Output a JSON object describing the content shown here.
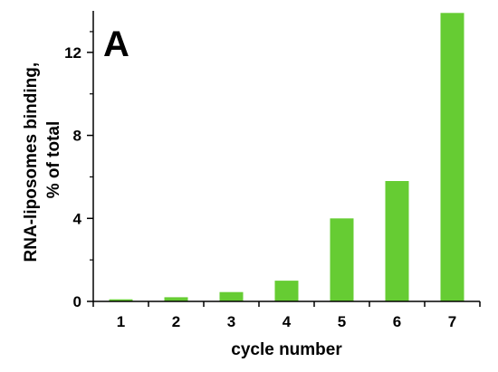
{
  "panel_label": "A",
  "colors": {
    "bar": "#66CC33",
    "axis": "#000000"
  },
  "chart_data": {
    "type": "bar",
    "title": "",
    "xlabel": "cycle number",
    "ylabel_line1": "RNA-liposomes binding,",
    "ylabel_line2": "% of total",
    "categories": [
      "1",
      "2",
      "3",
      "4",
      "5",
      "6",
      "7"
    ],
    "values": [
      0.1,
      0.2,
      0.45,
      1.0,
      4.0,
      5.8,
      13.9
    ],
    "ylim": [
      0,
      14
    ],
    "yticks": [
      0,
      4,
      8,
      12
    ],
    "ytick_labels": [
      "0",
      "4",
      "8",
      "12"
    ],
    "grid": false,
    "legend": "none"
  }
}
